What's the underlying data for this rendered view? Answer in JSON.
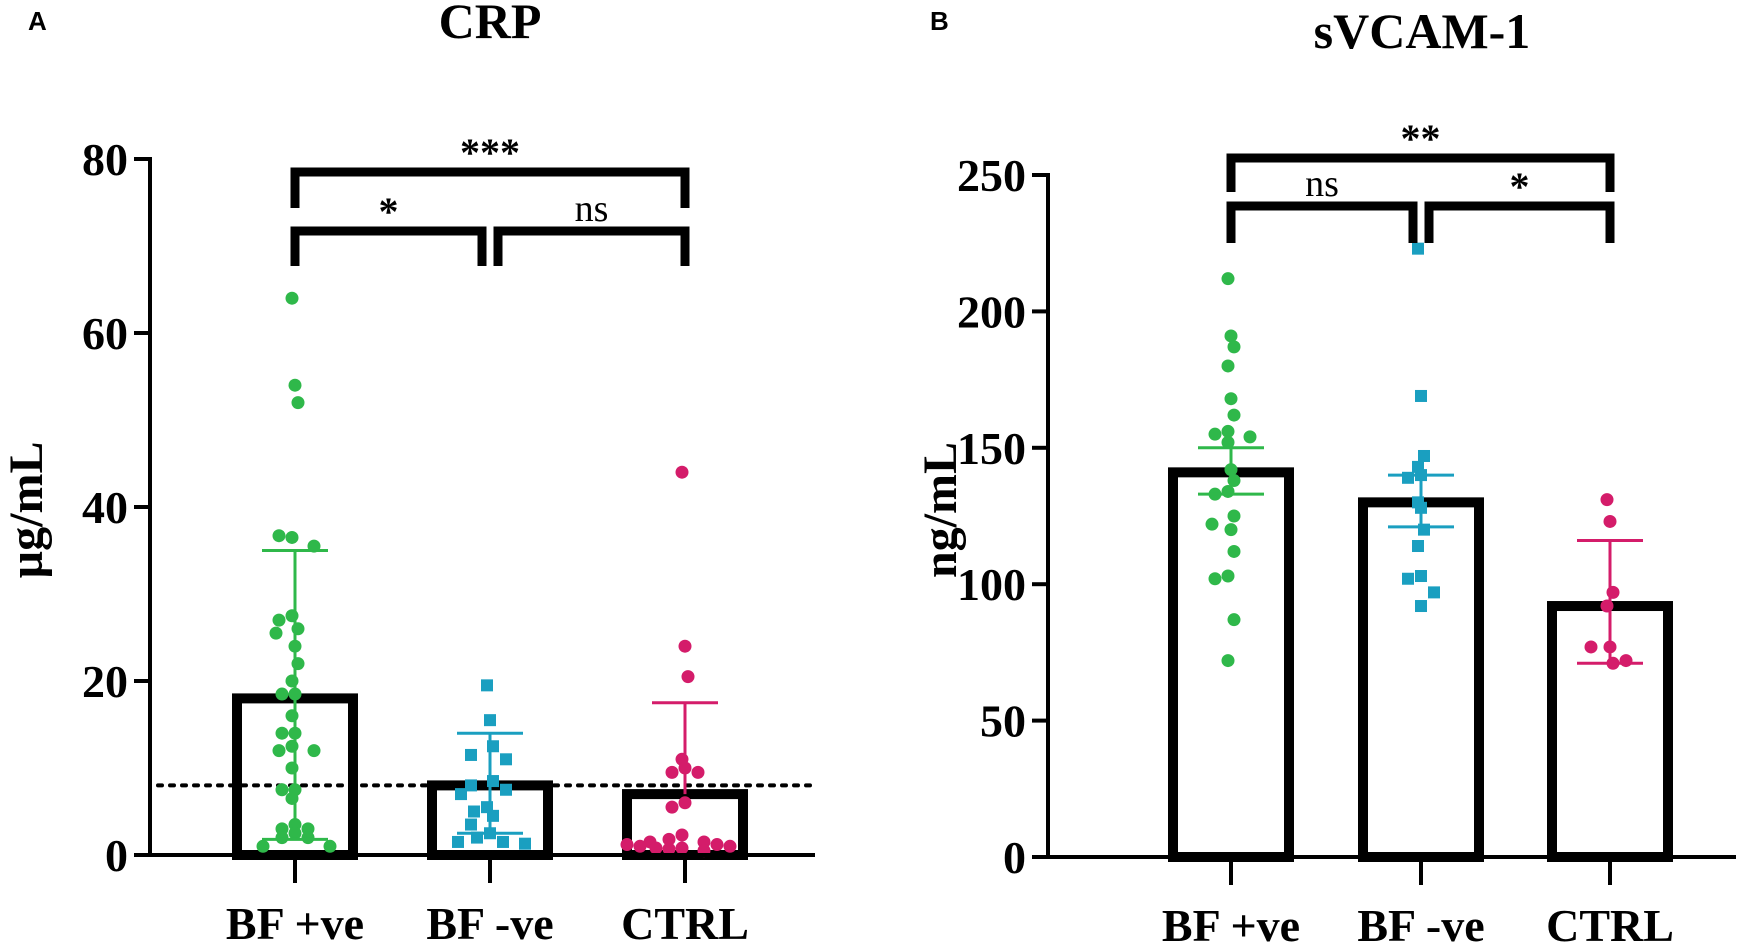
{
  "colors": {
    "bf_pos": "#2fb84a",
    "bf_neg": "#1a9fc0",
    "ctrl": "#d41c6a",
    "axis": "#000000"
  },
  "chart_data": [
    {
      "panel_label": "A",
      "type": "bar",
      "title": "CRP",
      "ylabel": "µg/mL",
      "xlabel": "",
      "ylim": [
        0,
        80
      ],
      "yticks": [
        0,
        20,
        40,
        60,
        80
      ],
      "categories": [
        "BF +ve",
        "BF -ve",
        "CTRL"
      ],
      "values": [
        18,
        8,
        7
      ],
      "error_high": [
        35,
        14,
        17.5
      ],
      "error_low": [
        1.8,
        2.5,
        null
      ],
      "reference_line": 8,
      "series": [
        {
          "name": "BF +ve",
          "marker": "circle",
          "color_key": "bf_pos",
          "points": [
            64,
            54,
            52,
            36.5,
            36.7,
            35.5,
            27.5,
            27,
            26,
            25.5,
            24,
            22,
            20,
            18.5,
            18.5,
            16,
            14,
            14,
            12.5,
            12,
            12,
            10,
            7.5,
            7.5,
            6.5,
            3.5,
            3,
            3,
            2.5,
            2,
            2,
            1,
            1
          ]
        },
        {
          "name": "BF -ve",
          "marker": "square",
          "color_key": "bf_neg",
          "points": [
            19.5,
            15.5,
            12.5,
            11.5,
            11,
            8.5,
            8,
            7.5,
            7,
            5.5,
            5,
            4.5,
            3.5,
            2.5,
            2,
            1.5,
            1.5,
            1.3
          ]
        },
        {
          "name": "CTRL",
          "marker": "circle",
          "color_key": "ctrl",
          "points": [
            44,
            24,
            20.5,
            11,
            10,
            9.5,
            9.5,
            6,
            5.5,
            2.3,
            1.8,
            1.5,
            1.5,
            1.2,
            1,
            0.8,
            0.7,
            0.5,
            1,
            1.2,
            0.8
          ]
        }
      ],
      "significance": [
        {
          "from": 0,
          "to": 2,
          "label": "***",
          "level": 2
        },
        {
          "from": 0,
          "to": 1,
          "label": "*",
          "level": 1
        },
        {
          "from": 1,
          "to": 2,
          "label": "ns",
          "level": 1
        }
      ]
    },
    {
      "panel_label": "B",
      "type": "bar",
      "title": "sVCAM-1",
      "ylabel": "ng/mL",
      "xlabel": "",
      "ylim": [
        0,
        250
      ],
      "yticks": [
        0,
        50,
        100,
        150,
        200,
        250
      ],
      "categories": [
        "BF +ve",
        "BF -ve",
        "CTRL"
      ],
      "values": [
        141,
        130,
        92
      ],
      "error_high": [
        150,
        140,
        116
      ],
      "error_low": [
        133,
        121,
        71
      ],
      "reference_line": null,
      "series": [
        {
          "name": "BF +ve",
          "marker": "circle",
          "color_key": "bf_pos",
          "points": [
            212,
            191,
            187,
            180,
            168,
            162,
            156,
            155,
            154,
            152,
            142,
            138,
            134,
            133,
            125,
            122,
            120,
            112,
            103,
            102,
            87,
            72
          ]
        },
        {
          "name": "BF -ve",
          "marker": "square",
          "color_key": "bf_neg",
          "points": [
            223,
            169,
            147,
            143,
            140,
            139,
            130,
            128,
            120,
            114,
            103,
            102,
            97,
            92
          ]
        },
        {
          "name": "CTRL",
          "marker": "circle",
          "color_key": "ctrl",
          "points": [
            131,
            123,
            97,
            92,
            77,
            71,
            77,
            72
          ]
        }
      ],
      "significance": [
        {
          "from": 0,
          "to": 2,
          "label": "**",
          "level": 2
        },
        {
          "from": 0,
          "to": 1,
          "label": "ns",
          "level": 1
        },
        {
          "from": 1,
          "to": 2,
          "label": "*",
          "level": 1
        }
      ]
    }
  ]
}
